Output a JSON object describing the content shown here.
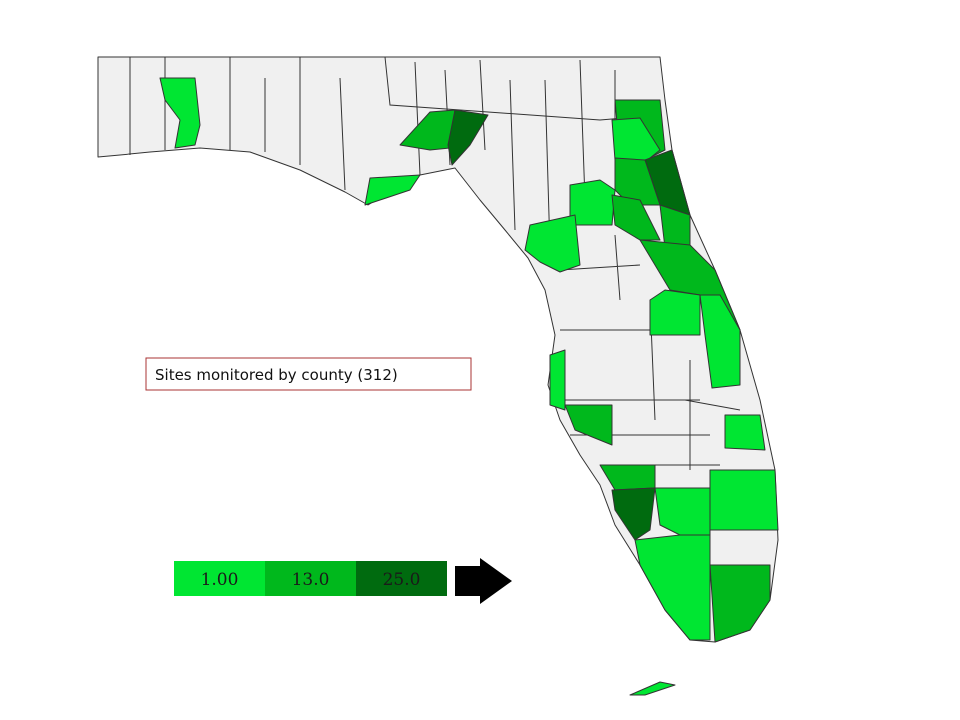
{
  "title": "Sites monitored by county (312)",
  "legend": [
    {
      "label": "1.00",
      "color": "#00e632"
    },
    {
      "label": "13.0",
      "color": "#00b81c"
    },
    {
      "label": "25.0",
      "color": "#006b0f"
    }
  ]
}
